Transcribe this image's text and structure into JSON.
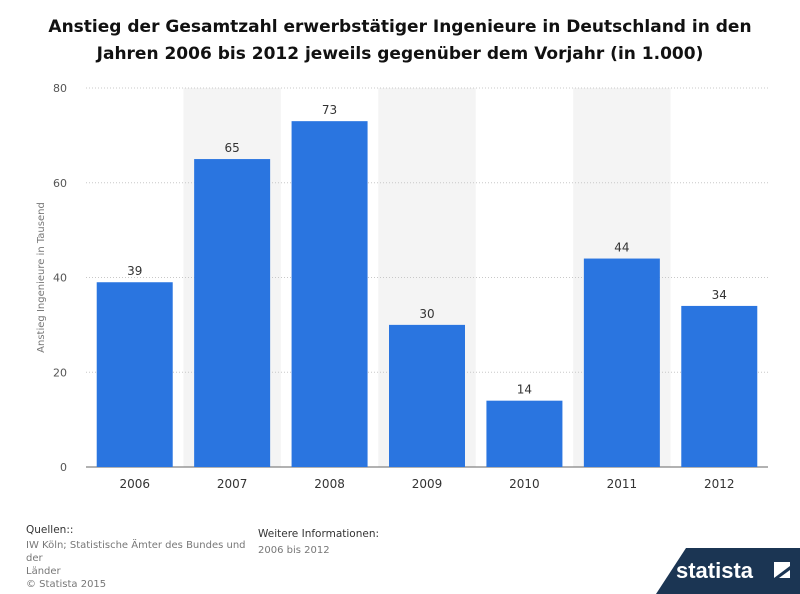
{
  "chart_data": {
    "type": "bar",
    "title_lines": [
      "Anstieg der Gesamtzahl erwerbstätiger Ingenieure in Deutschland in den",
      "Jahren 2006 bis 2012 jeweils gegenüber dem Vorjahr (in 1.000)"
    ],
    "categories": [
      "2006",
      "2007",
      "2008",
      "2009",
      "2010",
      "2011",
      "2012"
    ],
    "values": [
      39,
      65,
      73,
      30,
      14,
      44,
      34
    ],
    "ylabel": "Anstieg Ingenieure in Tausend",
    "xlabel": "",
    "ylim": [
      0,
      80
    ],
    "yticks": [
      0,
      20,
      40,
      60,
      80
    ],
    "bar_color": "#2a75e0",
    "grid": true
  },
  "footer": {
    "sources_heading": "Quellen::",
    "sources_lines": [
      "IW Köln; Statistische Ämter des Bundes und der",
      "Länder",
      "© Statista 2015"
    ],
    "info_heading": "Weitere Informationen:",
    "info_text": "2006 bis 2012"
  },
  "logo": {
    "text": "statista",
    "bg_color": "#1b3553"
  }
}
